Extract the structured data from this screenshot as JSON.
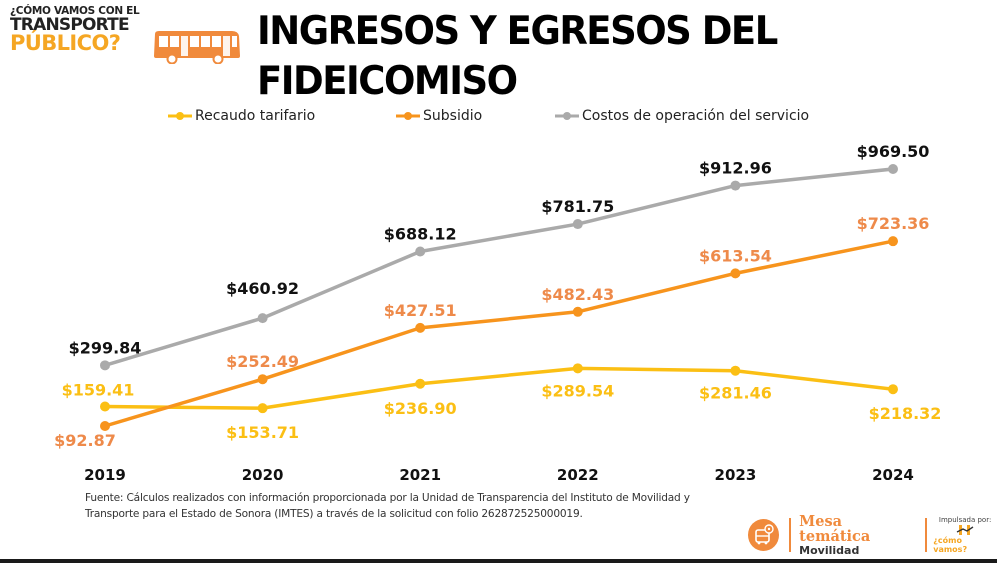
{
  "brand": {
    "line1": "¿CÓMO VAMOS CON EL",
    "line2": "TRANSPORTE",
    "line3": "PÚBLICO?",
    "icon": "bus-icon"
  },
  "title_lines": [
    "INGRESOS Y EGRESOS DEL",
    "FIDEICOMISO"
  ],
  "colors": {
    "recaudo": "#fbbf14",
    "subsidio": "#f7941d",
    "costos": "#aaaaaa",
    "subsidio_label": "#ee8a4a",
    "costos_label": "#111111",
    "accent": "#f08a3c"
  },
  "chart_data": {
    "type": "line",
    "title": "INGRESOS Y EGRESOS DEL FIDEICOMISO",
    "xlabel": "",
    "ylabel": "",
    "categories": [
      "2019",
      "2020",
      "2021",
      "2022",
      "2023",
      "2024"
    ],
    "grid": false,
    "legend_position": "top",
    "series": [
      {
        "name": "Recaudo tarifario",
        "values": [
          159.41,
          153.71,
          236.9,
          289.54,
          281.46,
          218.32
        ],
        "labels": [
          "$159.41",
          "$153.71",
          "$236.90",
          "$289.54",
          "$281.46",
          "$218.32"
        ]
      },
      {
        "name": "Subsidio",
        "values": [
          92.87,
          252.49,
          427.51,
          482.43,
          613.54,
          723.36
        ],
        "labels": [
          "$92.87",
          "$252.49",
          "$427.51",
          "$482.43",
          "$613.54",
          "$723.36"
        ]
      },
      {
        "name": "Costos de operación del servicio",
        "values": [
          299.84,
          460.92,
          688.12,
          781.75,
          912.96,
          969.5
        ],
        "labels": [
          "$299.84",
          "$460.92",
          "$688.12",
          "$781.75",
          "$912.96",
          "$969.50"
        ]
      }
    ]
  },
  "source_text": "Fuente: Cálculos realizados con información proporcionada por la Unidad de Transparencia del Instituto de Movilidad y Transporte para el Estado de Sonora (IMTES) a través de la solicitud con folio 262872525000019.",
  "footer": {
    "mesa_title": "Mesa temática",
    "mesa_subtitle": "Movilidad",
    "impulsada": "Impulsada por:",
    "como_vamos": "¿cómo vamos?",
    "mesa_icon": "bus-location-icon"
  }
}
